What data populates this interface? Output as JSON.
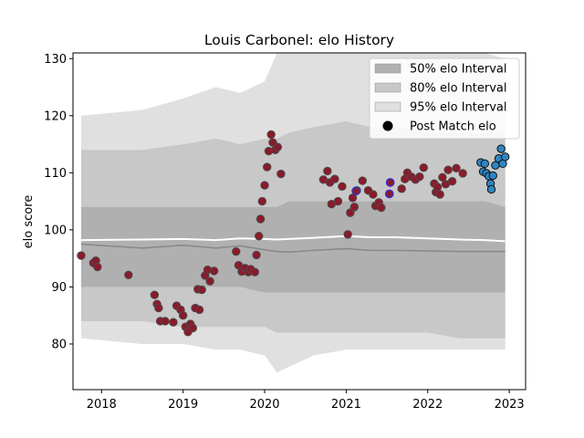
{
  "chart_data": {
    "type": "scatter",
    "title": "Louis Carbonel: elo History",
    "xlabel": "",
    "ylabel": "elo score",
    "xlim": [
      2017.65,
      2023.2
    ],
    "ylim": [
      72,
      131
    ],
    "x_ticks": [
      2018,
      2019,
      2020,
      2021,
      2022,
      2023
    ],
    "x_tick_labels": [
      "2018",
      "2019",
      "2020",
      "2021",
      "2022",
      "2023"
    ],
    "y_ticks": [
      80,
      90,
      100,
      110,
      120,
      130
    ],
    "y_tick_labels": [
      "80",
      "90",
      "100",
      "110",
      "120",
      "130"
    ],
    "grid": false,
    "legend_position": "top-right",
    "legend": [
      {
        "label": "50% elo Interval",
        "kind": "band",
        "color": "#b0b0b0"
      },
      {
        "label": "80% elo Interval",
        "kind": "band",
        "color": "#c8c8c8"
      },
      {
        "label": "95% elo Interval",
        "kind": "band",
        "color": "#e0e0e0"
      },
      {
        "label": "Post Match elo",
        "kind": "marker",
        "color": "#000000"
      }
    ],
    "colors": {
      "band50": "#b0b0b0",
      "band80": "#c8c8c8",
      "band95": "#e0e0e0",
      "median_line": "#ffffff",
      "mean_line": "#888888",
      "point_red": "#8b1a2b",
      "point_red_edge": "#4a4a4a",
      "point_purple_edge": "#3333cc",
      "point_blue": "#2e86c1",
      "point_blue_edge": "#111111"
    },
    "band_x": [
      2017.75,
      2018.5,
      2019.0,
      2019.4,
      2019.7,
      2020.0,
      2020.15,
      2020.3,
      2020.6,
      2021.0,
      2021.3,
      2021.6,
      2022.0,
      2022.4,
      2022.7,
      2022.95
    ],
    "band95_upper": [
      120,
      121,
      123,
      125,
      124,
      126,
      131,
      131,
      131,
      131,
      131,
      131,
      131,
      131,
      131,
      130
    ],
    "band95_lower": [
      81,
      80,
      80,
      79,
      79,
      78,
      75,
      76,
      78,
      79,
      79,
      79,
      79,
      79,
      79,
      79
    ],
    "band80_upper": [
      114,
      114,
      115,
      116,
      115,
      116,
      116,
      117,
      118,
      119,
      118,
      118,
      117,
      117,
      117,
      117
    ],
    "band80_lower": [
      84,
      84,
      83,
      83,
      83,
      83,
      82,
      82,
      82,
      82,
      82,
      82,
      82,
      81,
      81,
      81
    ],
    "band50_upper": [
      104,
      104,
      104,
      104,
      104,
      104,
      104,
      105,
      105,
      105,
      105,
      105,
      105,
      105,
      105,
      104
    ],
    "band50_lower": [
      90,
      90,
      90,
      90,
      90,
      89,
      89,
      89,
      89,
      89,
      89,
      89,
      89,
      89,
      89,
      89
    ],
    "median_line": [
      98.2,
      98.3,
      98.4,
      98.2,
      98.5,
      98.4,
      98.3,
      98.4,
      98.6,
      98.9,
      98.7,
      98.7,
      98.5,
      98.3,
      98.2,
      98.0
    ],
    "mean_line": [
      97.5,
      96.8,
      97.3,
      96.8,
      97.2,
      96.5,
      96.2,
      96.1,
      96.4,
      96.7,
      96.4,
      96.4,
      96.3,
      96.2,
      96.2,
      96.2
    ],
    "points_red": [
      [
        2017.75,
        95.5
      ],
      [
        2017.9,
        94.2
      ],
      [
        2017.93,
        94.6
      ],
      [
        2017.95,
        93.5
      ],
      [
        2018.33,
        92.1
      ],
      [
        2018.65,
        88.6
      ],
      [
        2018.68,
        87.0
      ],
      [
        2018.7,
        86.3
      ],
      [
        2018.72,
        84.0
      ],
      [
        2018.78,
        84.0
      ],
      [
        2018.88,
        83.8
      ],
      [
        2018.92,
        86.7
      ],
      [
        2018.97,
        86.0
      ],
      [
        2019.0,
        85.0
      ],
      [
        2019.03,
        83.0
      ],
      [
        2019.06,
        82.1
      ],
      [
        2019.09,
        83.5
      ],
      [
        2019.12,
        82.8
      ],
      [
        2019.15,
        86.3
      ],
      [
        2019.18,
        89.6
      ],
      [
        2019.2,
        86.0
      ],
      [
        2019.23,
        89.5
      ],
      [
        2019.27,
        92.0
      ],
      [
        2019.3,
        93.0
      ],
      [
        2019.33,
        91.0
      ],
      [
        2019.38,
        92.8
      ],
      [
        2019.65,
        96.2
      ],
      [
        2019.68,
        93.8
      ],
      [
        2019.72,
        92.7
      ],
      [
        2019.76,
        93.3
      ],
      [
        2019.8,
        92.6
      ],
      [
        2019.83,
        93.1
      ],
      [
        2019.88,
        92.6
      ],
      [
        2019.9,
        95.6
      ],
      [
        2019.93,
        98.9
      ],
      [
        2019.95,
        101.9
      ],
      [
        2019.97,
        105.0
      ],
      [
        2020.0,
        107.8
      ],
      [
        2020.03,
        111.0
      ],
      [
        2020.05,
        113.8
      ],
      [
        2020.08,
        116.7
      ],
      [
        2020.1,
        115.3
      ],
      [
        2020.13,
        114.0
      ],
      [
        2020.16,
        114.5
      ],
      [
        2020.2,
        109.8
      ],
      [
        2020.72,
        108.8
      ],
      [
        2020.77,
        110.3
      ],
      [
        2020.8,
        108.3
      ],
      [
        2020.82,
        104.5
      ],
      [
        2020.86,
        108.9
      ],
      [
        2020.9,
        105.0
      ],
      [
        2020.95,
        107.6
      ],
      [
        2021.02,
        99.2
      ],
      [
        2021.05,
        103.0
      ],
      [
        2021.08,
        105.6
      ],
      [
        2021.1,
        104.0
      ],
      [
        2021.13,
        106.9
      ],
      [
        2021.2,
        108.6
      ],
      [
        2021.27,
        106.9
      ],
      [
        2021.33,
        106.2
      ],
      [
        2021.36,
        104.2
      ],
      [
        2021.4,
        104.8
      ],
      [
        2021.43,
        103.9
      ],
      [
        2021.68,
        107.2
      ],
      [
        2021.72,
        108.9
      ],
      [
        2021.75,
        110.0
      ],
      [
        2021.8,
        109.3
      ],
      [
        2021.85,
        108.8
      ],
      [
        2021.9,
        109.3
      ],
      [
        2021.95,
        110.9
      ],
      [
        2022.08,
        108.1
      ],
      [
        2022.1,
        106.6
      ],
      [
        2022.12,
        107.5
      ],
      [
        2022.15,
        106.2
      ],
      [
        2022.18,
        109.2
      ],
      [
        2022.22,
        108.0
      ],
      [
        2022.25,
        110.5
      ],
      [
        2022.3,
        108.5
      ],
      [
        2022.35,
        110.8
      ],
      [
        2022.43,
        109.9
      ]
    ],
    "points_purple": [
      [
        2021.12,
        106.8
      ],
      [
        2021.53,
        106.3
      ],
      [
        2021.54,
        108.3
      ]
    ],
    "points_blue": [
      [
        2022.65,
        111.8
      ],
      [
        2022.68,
        110.2
      ],
      [
        2022.7,
        111.6
      ],
      [
        2022.72,
        109.9
      ],
      [
        2022.75,
        109.4
      ],
      [
        2022.77,
        108.1
      ],
      [
        2022.78,
        107.1
      ],
      [
        2022.8,
        109.5
      ],
      [
        2022.83,
        111.3
      ],
      [
        2022.87,
        112.5
      ],
      [
        2022.9,
        114.2
      ],
      [
        2022.92,
        111.6
      ],
      [
        2022.95,
        112.8
      ]
    ]
  }
}
